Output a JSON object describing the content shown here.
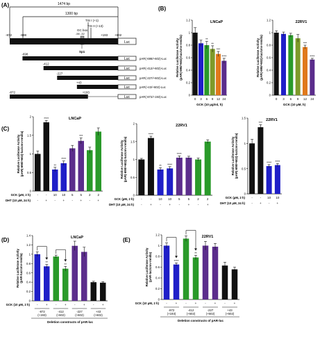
{
  "colors": {
    "black": "#111111",
    "blue": "#1f1fc8",
    "green": "#2a9a2a",
    "olive": "#7e9a2a",
    "orange": "#e0791c",
    "purple": "#5b2d8c",
    "purpleDark": "#3d1660",
    "grey": "#888888"
  },
  "panelA": {
    "label": "(A)",
    "span_top": "1474 bp",
    "span_mid": "1300 bp",
    "tis1": "TIS I (+1)",
    "tis2": "TIS II (+13)",
    "gcbox": "GC box",
    "gcbox_pos": "-55  -32",
    "sp1": "Sp1",
    "coords": [
      "-872",
      "-698",
      "+193",
      "+602"
    ],
    "luc": "Luc",
    "constructs": [
      {
        "start": "-698",
        "end": null,
        "name": "pAR(-698/+602)-Luc",
        "from": -698,
        "to": 602
      },
      {
        "start": "-412",
        "end": null,
        "name": "pAR(-412/+602)-Luc",
        "from": -412,
        "to": 602
      },
      {
        "start": "-227",
        "end": null,
        "name": "pAR(-227/+602)-Luc",
        "from": -227,
        "to": 602
      },
      {
        "start": "+43",
        "end": null,
        "name": "pAR(+43/+602)-Luc",
        "from": 43,
        "to": 602
      },
      {
        "start": "-872",
        "end": "+193",
        "name": "pAR(-872/+193)-Luc",
        "from": -872,
        "to": 193
      }
    ]
  },
  "chart_data": [
    {
      "id": "B1",
      "panel": "(B)",
      "type": "bar",
      "title": "LNCaP",
      "ylabel": "Relative Luciferase Activity (pAR(-698/+602)-luc/cmv-renilla)",
      "xlabel": "GCK (10 μg/ml, h)",
      "categories": [
        "0",
        "3",
        "6",
        "9",
        "12",
        "24"
      ],
      "values": [
        1.0,
        0.83,
        0.8,
        0.74,
        0.66,
        0.55
      ],
      "errors": [
        0.08,
        0.05,
        0.06,
        0.05,
        0.04,
        0.04
      ],
      "sig": [
        "",
        "",
        "**",
        "**",
        "***",
        "****"
      ],
      "ylim": [
        0,
        1.2
      ],
      "yticks": [
        0,
        0.2,
        0.4,
        0.6,
        0.8,
        1.0,
        1.2
      ],
      "colors": [
        "black",
        "blue",
        "green",
        "olive",
        "orange",
        "purple"
      ]
    },
    {
      "id": "B2",
      "type": "bar",
      "title": "22RV1",
      "ylabel": "Relative Luciferase Activity (pAR(-698/+602)-luc/cmv-renilla)",
      "xlabel": "GCK (10 μM, h)",
      "categories": [
        "0",
        "3",
        "6",
        "9",
        "12",
        "24"
      ],
      "values": [
        1.0,
        0.98,
        0.96,
        0.91,
        0.77,
        0.57
      ],
      "errors": [
        0.03,
        0.03,
        0.03,
        0.06,
        0.03,
        0.02
      ],
      "sig": [
        "",
        "",
        "",
        "",
        "***",
        "****"
      ],
      "ylim": [
        0,
        1.2
      ],
      "yticks": [
        0,
        0.2,
        0.4,
        0.6,
        0.8,
        1.0,
        1.2
      ],
      "colors": [
        "black",
        "blue",
        "green",
        "olive",
        "orange",
        "purple"
      ]
    },
    {
      "id": "C1",
      "panel": "(C)",
      "type": "bar",
      "title": "LNCaP",
      "ylabel": "Relative Luciferase Activity (pAR(-698/+602)-luc/cmv-renilla)",
      "categories": [
        "1",
        "2",
        "3",
        "4",
        "5",
        "6",
        "7",
        "8"
      ],
      "values": [
        1.0,
        1.85,
        0.58,
        0.75,
        1.15,
        1.35,
        1.1,
        1.6
      ],
      "errors": [
        0.08,
        0.05,
        0.06,
        0.06,
        0.08,
        0.08,
        0.08,
        0.1
      ],
      "sig": [
        "",
        "****",
        "**",
        "****",
        "",
        "***",
        "",
        ""
      ],
      "ylim": [
        0,
        2.0
      ],
      "yticks": [
        0,
        0.5,
        1.0,
        1.5,
        2.0
      ],
      "colors": [
        "black",
        "black",
        "blue",
        "blue",
        "purple",
        "purple",
        "green",
        "green"
      ],
      "rows": [
        {
          "label": "GCK (μM, 2 h)",
          "values": [
            "-",
            "-",
            "10",
            "10",
            "5",
            "5",
            "2",
            "2"
          ]
        },
        {
          "label": "DHT (10 μM, 24 h)",
          "values": [
            "-",
            "+",
            "-",
            "+",
            "-",
            "+",
            "-",
            "+"
          ]
        }
      ]
    },
    {
      "id": "C2",
      "type": "bar",
      "title": "22RV1",
      "ylabel": "Relative Luciferase Activity (pAR(-698/+602)-luc/cmv-renilla)",
      "categories": [
        "1",
        "2",
        "3",
        "4",
        "5",
        "6",
        "7",
        "8"
      ],
      "values": [
        1.0,
        1.6,
        0.72,
        0.75,
        1.05,
        1.05,
        1.0,
        1.5
      ],
      "errors": [
        0.03,
        0.05,
        0.05,
        0.05,
        0.05,
        0.04,
        0.04,
        0.05
      ],
      "sig": [
        "",
        "****",
        "**",
        "****",
        "****",
        "",
        "",
        ""
      ],
      "ylim": [
        0,
        2.0
      ],
      "yticks": [
        0,
        0.5,
        1.0,
        1.5,
        2.0
      ],
      "colors": [
        "black",
        "black",
        "blue",
        "blue",
        "purple",
        "purple",
        "green",
        "green"
      ],
      "rows": [
        {
          "label": "GCK (μM, 2 h)",
          "values": [
            "-",
            "-",
            "10",
            "10",
            "5",
            "5",
            "2",
            "2"
          ]
        },
        {
          "label": "DHT (10 μM, 24 h)",
          "values": [
            "-",
            "+",
            "-",
            "+",
            "-",
            "+",
            "-",
            "+"
          ]
        }
      ]
    },
    {
      "id": "C3",
      "type": "bar",
      "title": "22RV1",
      "ylabel": "Relative Luciferase Activity (pAR(-698/+602)-luc/cmv-renilla)",
      "categories": [
        "1",
        "2",
        "3",
        "4"
      ],
      "values": [
        1.0,
        1.32,
        0.55,
        0.57
      ],
      "errors": [
        0.08,
        0.05,
        0.03,
        0.03
      ],
      "sig": [
        "",
        "***",
        "****",
        "****"
      ],
      "ylim": [
        0,
        1.5
      ],
      "yticks": [
        0,
        0.5,
        1.0,
        1.5
      ],
      "colors": [
        "black",
        "black",
        "blue",
        "blue"
      ],
      "rows": [
        {
          "label": "GCK (μM, 2 h)",
          "values": [
            "-",
            "-",
            "10",
            "10"
          ]
        },
        {
          "label": "DHT (10 μM, 24 h)",
          "values": [
            "-",
            "+",
            "-",
            "+"
          ]
        }
      ]
    },
    {
      "id": "D",
      "panel": "(D)",
      "type": "bar",
      "title": "LNCaP",
      "ylabel": "Relative Luciferase Activity (pAR-luc/cmv-renilla)",
      "categories": [
        "1",
        "2",
        "3",
        "4",
        "5",
        "6",
        "7",
        "8"
      ],
      "values": [
        1.0,
        0.74,
        0.95,
        0.69,
        1.18,
        1.05,
        0.4,
        0.39
      ],
      "errors": [
        0.05,
        0.04,
        0.03,
        0.05,
        0.1,
        0.1,
        0.02,
        0.02
      ],
      "sig": [
        "",
        "**",
        "",
        "**",
        "",
        "",
        "",
        ""
      ],
      "arrows": [
        [
          0,
          1
        ],
        [
          2,
          3
        ]
      ],
      "ylim": [
        0,
        1.4
      ],
      "yticks": [
        0,
        0.2,
        0.4,
        0.6,
        0.8,
        1.0,
        1.2,
        1.4
      ],
      "colors": [
        "blue",
        "blue",
        "green",
        "green",
        "purple",
        "purple",
        "black",
        "black"
      ],
      "rows": [
        {
          "label": "GCK (10 μM, 2 h)",
          "values": [
            "-",
            "+",
            "-",
            "+",
            "-",
            "+",
            "-",
            "+"
          ]
        }
      ],
      "groups": [
        {
          "line1": "-872",
          "line2": "(+193)"
        },
        {
          "line1": "-412",
          "line2": "(+602)"
        },
        {
          "line1": "-227",
          "line2": "(+602)"
        },
        {
          "line1": "+43",
          "line2": "(+602)"
        }
      ],
      "footer": "Deletion constructs of pAR-luc"
    },
    {
      "id": "E",
      "panel": "(E)",
      "type": "bar",
      "title": "22RV1",
      "ylabel": "Relative Luciferase Activity (pAR-luc/cmv-renilla)",
      "categories": [
        "1",
        "2",
        "3",
        "4",
        "5",
        "6",
        "7",
        "8"
      ],
      "values": [
        1.0,
        0.65,
        1.13,
        0.78,
        1.0,
        0.98,
        0.63,
        0.56
      ],
      "errors": [
        0.05,
        0.03,
        0.05,
        0.04,
        0.08,
        0.06,
        0.06,
        0.04
      ],
      "sig": [
        "",
        "****",
        "",
        "**",
        "",
        "",
        "",
        ""
      ],
      "arrows": [
        [
          0,
          1
        ],
        [
          2,
          3
        ]
      ],
      "ylim": [
        0,
        1.2
      ],
      "yticks": [
        0,
        0.2,
        0.4,
        0.6,
        0.8,
        1.0,
        1.2
      ],
      "colors": [
        "blue",
        "blue",
        "green",
        "green",
        "purple",
        "purple",
        "black",
        "black"
      ],
      "rows": [
        {
          "label": "GCK (10 μM, 2 h)",
          "values": [
            "-",
            "+",
            "-",
            "+",
            "-",
            "+",
            "-",
            "+"
          ]
        }
      ],
      "groups": [
        {
          "line1": "-872",
          "line2": "(+193)"
        },
        {
          "line1": "-412",
          "line2": "(+602)"
        },
        {
          "line1": "-227",
          "line2": "(+602)"
        },
        {
          "line1": "+43",
          "line2": "(+602)"
        }
      ],
      "footer": "Deletion constructs of pAR-luc"
    }
  ]
}
